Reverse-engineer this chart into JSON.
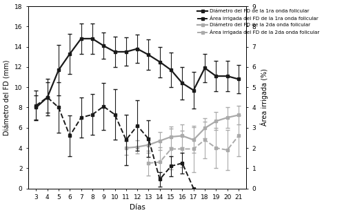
{
  "days_wave1_diam": [
    3,
    4,
    5,
    6,
    7,
    8,
    9,
    10,
    11,
    12,
    13,
    14,
    15,
    16,
    17,
    18,
    19,
    20,
    21
  ],
  "diam_wave1": [
    8.0,
    9.0,
    11.7,
    13.3,
    14.8,
    14.8,
    14.1,
    13.5,
    13.5,
    13.8,
    13.2,
    12.5,
    11.7,
    10.4,
    9.7,
    11.9,
    11.1,
    11.1,
    10.8
  ],
  "diam_wave1_err": [
    1.2,
    1.5,
    2.5,
    2.0,
    1.5,
    1.5,
    1.3,
    1.5,
    1.4,
    1.4,
    1.5,
    1.5,
    1.7,
    1.6,
    1.8,
    1.4,
    1.5,
    1.5,
    1.4
  ],
  "days_wave1_area": [
    3,
    4,
    5,
    6,
    7,
    8,
    9,
    10,
    11,
    12,
    13,
    14,
    15,
    16,
    17
  ],
  "area_wave1": [
    4.1,
    4.5,
    4.0,
    2.6,
    3.5,
    3.65,
    4.05,
    3.65,
    2.4,
    3.1,
    2.45,
    0.45,
    1.1,
    1.25,
    0.0
  ],
  "area_wave1_err": [
    0.75,
    0.9,
    1.25,
    1.0,
    1.0,
    1.0,
    1.15,
    1.25,
    1.25,
    1.25,
    0.9,
    0.35,
    0.5,
    0.5,
    0.0
  ],
  "days_wave2_diam": [
    11,
    12,
    13,
    14,
    15,
    16,
    17,
    18,
    19,
    20,
    21
  ],
  "diam_wave2": [
    4.0,
    4.1,
    4.3,
    4.7,
    5.1,
    5.2,
    4.8,
    5.95,
    6.65,
    7.0,
    7.25
  ],
  "diam_wave2_err": [
    0.65,
    0.65,
    0.75,
    0.9,
    1.0,
    1.15,
    1.25,
    1.0,
    0.9,
    1.0,
    0.9
  ],
  "days_wave2_area": [
    13,
    14,
    15,
    16,
    17,
    18,
    19,
    20,
    21
  ],
  "area_wave2": [
    1.25,
    1.3,
    1.95,
    1.95,
    1.95,
    2.4,
    2.0,
    1.9,
    2.6
  ],
  "area_wave2_err": [
    0.6,
    0.75,
    1.0,
    0.9,
    1.15,
    0.9,
    1.0,
    1.0,
    1.0
  ],
  "color_dark": "#1a1a1a",
  "color_lgray": "#aaaaaa",
  "ylabel_left": "Diámetro del FD (mm)",
  "ylabel_right": "Área irrigada (%)",
  "xlabel": "Días",
  "ylim_left": [
    0,
    18
  ],
  "ylim_right": [
    0,
    9
  ],
  "xticks": [
    3,
    4,
    5,
    6,
    7,
    8,
    9,
    10,
    11,
    12,
    13,
    14,
    15,
    16,
    17,
    18,
    19,
    20,
    21
  ],
  "yticks_left": [
    0,
    2,
    4,
    6,
    8,
    10,
    12,
    14,
    16,
    18
  ],
  "yticks_right": [
    0,
    1,
    2,
    3,
    4,
    5,
    6,
    7,
    8,
    9
  ],
  "legend_labels": [
    "Diámetro del FD de la 1ra onda folicular",
    "Área irrigada del FD de la 1ra onda folicular",
    "Diámetro del FD de la 2da onda folicular",
    "Área irrigada del FD de la 2da onda folicular"
  ]
}
